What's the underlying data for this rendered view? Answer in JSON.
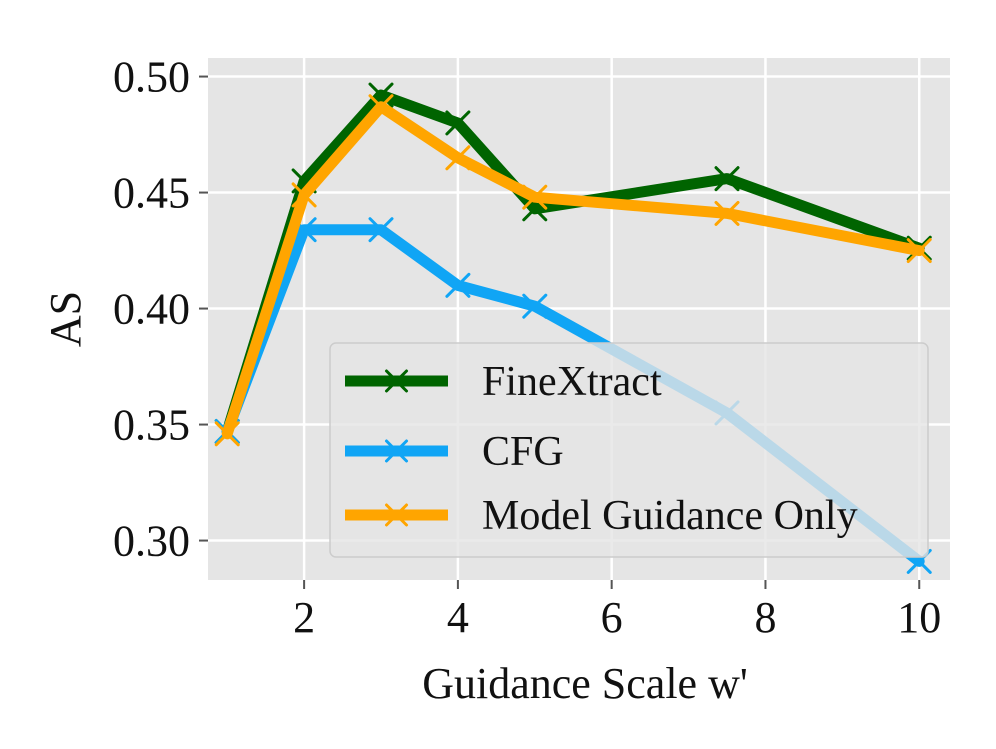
{
  "chart_data": {
    "type": "line",
    "title": "",
    "xlabel": "Guidance Scale w'",
    "ylabel": "AS",
    "xlim": [
      0.75,
      10.4
    ],
    "ylim": [
      0.283,
      0.508
    ],
    "xticks": [
      2,
      4,
      6,
      8,
      10
    ],
    "yticks": [
      0.3,
      0.35,
      0.4,
      0.45,
      0.5
    ],
    "xtick_labels": [
      "2",
      "4",
      "6",
      "8",
      "10"
    ],
    "ytick_labels": [
      "0.30",
      "0.35",
      "0.40",
      "0.45",
      "0.50"
    ],
    "grid": true,
    "background": "#e5e5e5",
    "legend_position": "lower-right",
    "series": [
      {
        "name": "FineXtract",
        "color": "#006400",
        "marker": "x",
        "x": [
          1,
          2,
          3,
          4,
          5,
          7.5,
          10
        ],
        "y": [
          0.347,
          0.455,
          0.492,
          0.48,
          0.443,
          0.456,
          0.426
        ]
      },
      {
        "name": "CFG",
        "color": "#10a5f5",
        "marker": "x",
        "x": [
          1,
          2,
          3,
          4,
          5,
          7.5,
          10
        ],
        "y": [
          0.347,
          0.434,
          0.434,
          0.41,
          0.401,
          0.355,
          0.291
        ]
      },
      {
        "name": "Model Guidance Only",
        "color": "#ffa500",
        "marker": "x",
        "x": [
          1,
          2,
          3,
          4,
          5,
          7.5,
          10
        ],
        "y": [
          0.346,
          0.449,
          0.487,
          0.465,
          0.448,
          0.441,
          0.425
        ]
      }
    ]
  }
}
